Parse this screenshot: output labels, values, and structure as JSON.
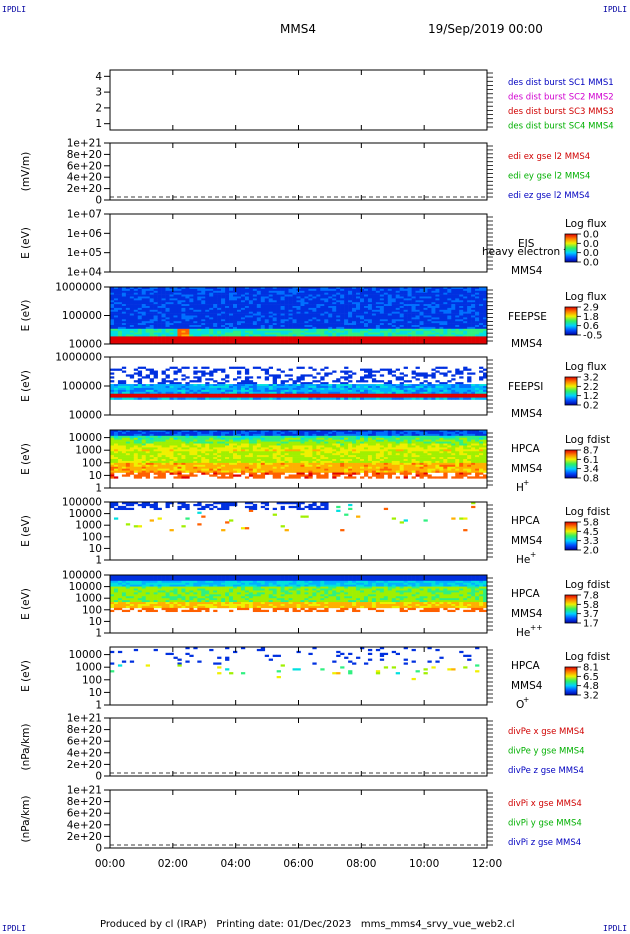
{
  "header": {
    "corner_left_top": "IPDLI",
    "corner_right_top": "IPDLI",
    "corner_left_bottom": "IPDLI",
    "corner_right_bottom": "IPDLI",
    "spacecraft": "MMS4",
    "datetime": "19/Sep/2019 00:00"
  },
  "footer": {
    "text": "Produced by cl (IRAP)   Printing date: 01/Dec/2023   mms_mms4_srvy_vue_web2.cl"
  },
  "x_axis": {
    "ticks": [
      "00:00",
      "02:00",
      "04:00",
      "06:00",
      "08:00",
      "10:00",
      "12:00"
    ],
    "range_hours": [
      0,
      12
    ]
  },
  "colors": {
    "mms1": "#0000c0",
    "mms2": "#d000d0",
    "mms3": "#d00000",
    "mms4": "#00b000",
    "red": "#d00000",
    "green": "#00b000",
    "blue": "#0000c0"
  },
  "chart_data": [
    {
      "type": "line",
      "name": "des dist burst",
      "ylabel": "",
      "yticks": [
        "1",
        "2",
        "3",
        "4"
      ],
      "ylim": [
        0.6,
        4.4
      ],
      "legend": [
        {
          "text": "des dist burst SC1 MMS1",
          "color": "#0000c0"
        },
        {
          "text": "des dist burst SC2 MMS2",
          "color": "#d000d0"
        },
        {
          "text": "des dist burst SC3 MMS3",
          "color": "#d00000"
        },
        {
          "text": "des dist burst SC4 MMS4",
          "color": "#00b000"
        }
      ],
      "series": []
    },
    {
      "type": "line",
      "ylabel": "(mV/m)",
      "yticks": [
        "0",
        "2e+20",
        "4e+20",
        "6e+20",
        "8e+20",
        "1e+21"
      ],
      "ylim": [
        0,
        1e+21
      ],
      "zero_line": true,
      "legend": [
        {
          "text": "edi ex gse l2 MMS4",
          "color": "#d00000"
        },
        {
          "text": "edi ey gse l2 MMS4",
          "color": "#00b000"
        },
        {
          "text": "edi ez gse l2 MMS4",
          "color": "#0000c0"
        }
      ],
      "series": []
    },
    {
      "type": "heatmap",
      "ylabel": "E (eV)",
      "yticks": [
        "1e+04",
        "1e+05",
        "1e+06",
        "1e+07"
      ],
      "ylim": [
        10000,
        10000000
      ],
      "log": true,
      "labels": [
        "EIS",
        "heavy electron to",
        "MMS4"
      ],
      "colorbar": {
        "title": "Log flux",
        "ticks": [
          "0.0",
          "0.0",
          "0.0",
          "0.0"
        ]
      },
      "empty": true
    },
    {
      "type": "heatmap",
      "ylabel": "E (eV)",
      "yticks": [
        "10000",
        "100000",
        "1000000"
      ],
      "ylim": [
        10000,
        1000000
      ],
      "log": true,
      "labels": [
        "FEEPSE",
        "MMS4"
      ],
      "colorbar": {
        "title": "Log flux",
        "ticks": [
          "2.9",
          "1.8",
          "0.6",
          "-0.5"
        ]
      },
      "pattern": "feepse"
    },
    {
      "type": "heatmap",
      "ylabel": "E (eV)",
      "yticks": [
        "10000",
        "100000",
        "1000000"
      ],
      "ylim": [
        10000,
        1000000
      ],
      "log": true,
      "labels": [
        "FEEPSI",
        "MMS4"
      ],
      "colorbar": {
        "title": "Log flux",
        "ticks": [
          "3.2",
          "2.2",
          "1.2",
          "0.2"
        ]
      },
      "pattern": "feepsi"
    },
    {
      "type": "heatmap",
      "ylabel": "E (eV)",
      "yticks": [
        "1",
        "10",
        "100",
        "1000",
        "10000"
      ],
      "ylim": [
        1,
        40000
      ],
      "log": true,
      "labels": [
        "HPCA",
        "MMS4",
        "H",
        "+"
      ],
      "colorbar": {
        "title": "Log fdist",
        "ticks": [
          "8.7",
          "6.1",
          "3.4",
          "0.8"
        ]
      },
      "pattern": "hplus"
    },
    {
      "type": "heatmap",
      "ylabel": "E (eV)",
      "yticks": [
        "1",
        "10",
        "100",
        "1000",
        "10000",
        "100000"
      ],
      "ylim": [
        1,
        100000
      ],
      "log": true,
      "labels": [
        "HPCA",
        "MMS4",
        "He",
        "+"
      ],
      "colorbar": {
        "title": "Log fdist",
        "ticks": [
          "5.8",
          "4.5",
          "3.3",
          "2.0"
        ]
      },
      "pattern": "heplus"
    },
    {
      "type": "heatmap",
      "ylabel": "E (eV)",
      "yticks": [
        "1",
        "10",
        "100",
        "1000",
        "10000",
        "100000"
      ],
      "ylim": [
        1,
        100000
      ],
      "log": true,
      "labels": [
        "HPCA",
        "MMS4",
        "He",
        "++"
      ],
      "colorbar": {
        "title": "Log fdist",
        "ticks": [
          "7.8",
          "5.8",
          "3.7",
          "1.7"
        ]
      },
      "pattern": "heplusplus"
    },
    {
      "type": "heatmap",
      "ylabel": "E (eV)",
      "yticks": [
        "1",
        "10",
        "100",
        "1000",
        "10000"
      ],
      "ylim": [
        1,
        40000
      ],
      "log": true,
      "labels": [
        "HPCA",
        "MMS4",
        "O",
        "+"
      ],
      "colorbar": {
        "title": "Log fdist",
        "ticks": [
          "8.1",
          "6.5",
          "4.8",
          "3.2"
        ]
      },
      "pattern": "oplus"
    },
    {
      "type": "line",
      "ylabel": "(nPa/km)",
      "yticks": [
        "0",
        "2e+20",
        "4e+20",
        "6e+20",
        "8e+20",
        "1e+21"
      ],
      "ylim": [
        0,
        1e+21
      ],
      "zero_line": true,
      "legend": [
        {
          "text": "divPe x gse MMS4",
          "color": "#d00000"
        },
        {
          "text": "divPe y gse MMS4",
          "color": "#00b000"
        },
        {
          "text": "divPe z gse MMS4",
          "color": "#0000c0"
        }
      ],
      "series": []
    },
    {
      "type": "line",
      "ylabel": "(nPa/km)",
      "yticks": [
        "0",
        "2e+20",
        "4e+20",
        "6e+20",
        "8e+20",
        "1e+21"
      ],
      "ylim": [
        0,
        1e+21
      ],
      "zero_line": true,
      "legend": [
        {
          "text": "divPi x gse MMS4",
          "color": "#d00000"
        },
        {
          "text": "divPi y gse MMS4",
          "color": "#00b000"
        },
        {
          "text": "divPi z gse MMS4",
          "color": "#0000c0"
        }
      ],
      "series": []
    }
  ]
}
